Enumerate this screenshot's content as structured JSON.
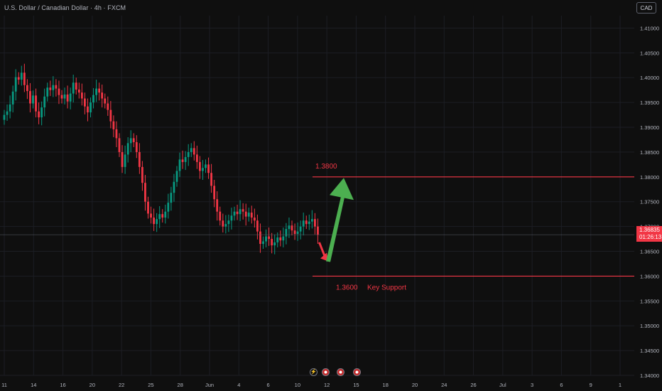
{
  "header": {
    "title": "U.S. Dollar / Canadian Dollar · 4h · FXCM",
    "currency": "CAD"
  },
  "price_badge": {
    "price": "1.36835",
    "countdown": "01:26:13"
  },
  "events": [
    {
      "icon": "lightning-icon"
    },
    {
      "icon": "us-flag-icon"
    },
    {
      "icon": "us-flag-icon"
    },
    {
      "icon": "us-flag-icon"
    }
  ],
  "annotations": {
    "resistance_label": "1.3800",
    "support_label": "1.3600",
    "support_text": "Key Support"
  },
  "colors": {
    "background": "#0f0f0f",
    "up": "#089981",
    "down": "#f23645",
    "grid": "#1c1e24",
    "level_line": "#f23645",
    "up_arrow": "#4caf50",
    "down_arrow": "#f23645",
    "axis_text": "#b2b5be"
  },
  "chart_data": {
    "type": "candlestick",
    "symbol": "USDCAD",
    "timeframe": "4h",
    "exchange": "FXCM",
    "ylim": [
      1.34,
      1.4125
    ],
    "y_ticks": [
      "1.41000",
      "1.40500",
      "1.40000",
      "1.39500",
      "1.39000",
      "1.38500",
      "1.38000",
      "1.37500",
      "1.37000",
      "1.36500",
      "1.36000",
      "1.35500",
      "1.35000",
      "1.34500",
      "1.34000"
    ],
    "x_ticks": [
      "11",
      "14",
      "16",
      "20",
      "22",
      "25",
      "28",
      "Jun",
      "4",
      "6",
      "10",
      "12",
      "15",
      "18",
      "20",
      "24",
      "26",
      "Jul",
      "3",
      "6",
      "9",
      "1"
    ],
    "last_price": 1.36835,
    "closes": [
      1.3925,
      1.3932,
      1.3946,
      1.3972,
      1.4001,
      1.3996,
      1.401,
      1.3985,
      1.3973,
      1.3948,
      1.3964,
      1.3932,
      1.392,
      1.394,
      1.3962,
      1.398,
      1.3975,
      1.3985,
      1.3978,
      1.3965,
      1.3958,
      1.3966,
      1.3952,
      1.3968,
      1.399,
      1.3976,
      1.397,
      1.3958,
      1.3942,
      1.393,
      1.395,
      1.3965,
      1.3978,
      1.397,
      1.3958,
      1.3948,
      1.3935,
      1.3912,
      1.3896,
      1.3878,
      1.385,
      1.382,
      1.3845,
      1.3868,
      1.3878,
      1.387,
      1.385,
      1.382,
      1.3788,
      1.375,
      1.3726,
      1.3718,
      1.3705,
      1.3715,
      1.3725,
      1.3718,
      1.373,
      1.3748,
      1.3768,
      1.379,
      1.3812,
      1.3835,
      1.383,
      1.384,
      1.385,
      1.3858,
      1.3845,
      1.383,
      1.3812,
      1.3818,
      1.3825,
      1.3808,
      1.3782,
      1.3755,
      1.373,
      1.3712,
      1.37,
      1.3705,
      1.3712,
      1.3722,
      1.373,
      1.3725,
      1.3735,
      1.373,
      1.372,
      1.3728,
      1.3718,
      1.3712,
      1.369,
      1.3665,
      1.367,
      1.368,
      1.3675,
      1.3662,
      1.3668,
      1.3678,
      1.3672,
      1.368,
      1.3695,
      1.3702,
      1.3692,
      1.3685,
      1.369,
      1.37,
      1.3712,
      1.3705,
      1.371,
      1.3715,
      1.37,
      1.3683
    ],
    "levels": [
      {
        "price": 1.38,
        "label": "1.3800"
      },
      {
        "price": 1.36,
        "label": "1.3600",
        "note": "Key Support"
      }
    ]
  }
}
